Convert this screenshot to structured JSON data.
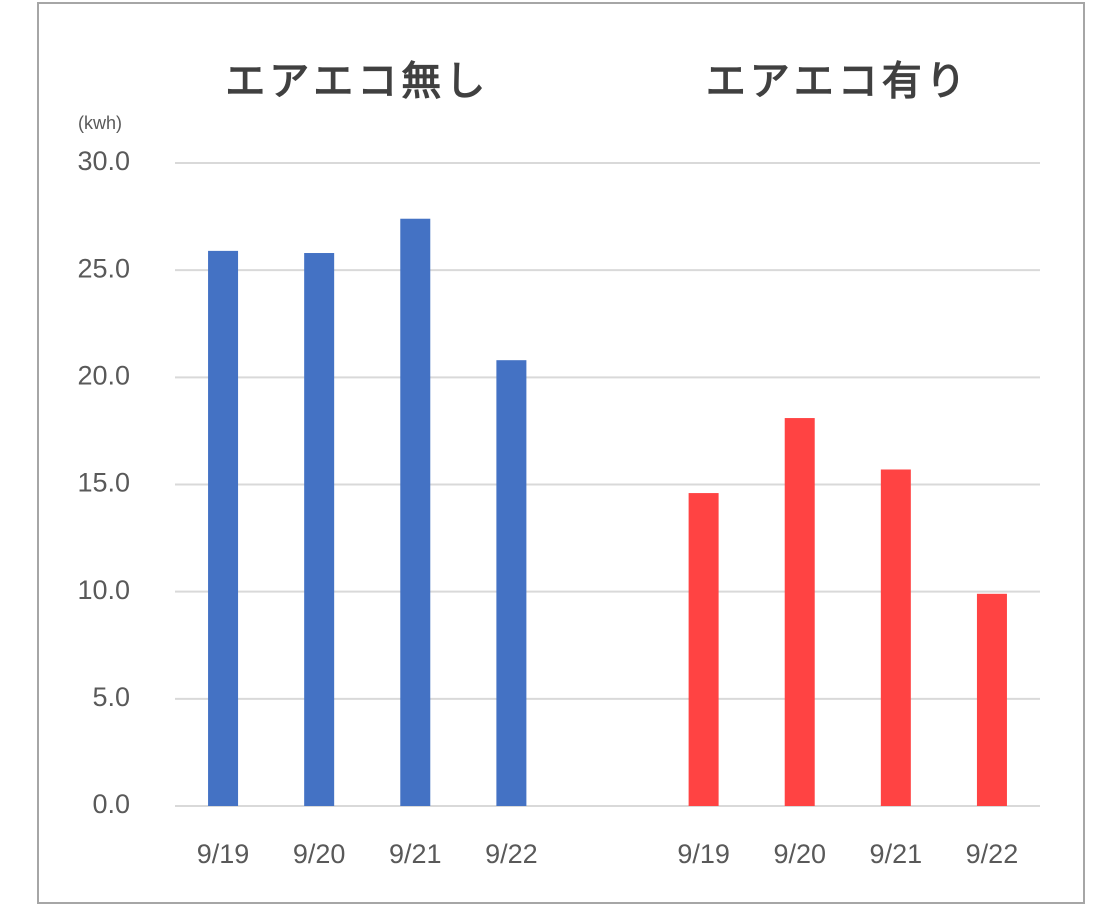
{
  "chart_data": {
    "type": "bar",
    "ylabel": "(kwh)",
    "categories": [
      "9/19",
      "9/20",
      "9/21",
      "9/22",
      null,
      "9/19",
      "9/20",
      "9/21",
      "9/22"
    ],
    "series": [
      {
        "name": "エアエコ無し",
        "color": "#4472c4",
        "values": [
          25.9,
          25.8,
          27.4,
          20.8,
          null,
          null,
          null,
          null,
          null
        ]
      },
      {
        "name": "エアエコ有り",
        "color": "#ff4343",
        "values": [
          null,
          null,
          null,
          null,
          null,
          14.6,
          18.1,
          15.7,
          9.9
        ]
      }
    ],
    "ylim": [
      0,
      30
    ],
    "yticks": [
      {
        "value": 0,
        "label": "0.0"
      },
      {
        "value": 5,
        "label": "5.0"
      },
      {
        "value": 10,
        "label": "10.0"
      },
      {
        "value": 15,
        "label": "15.0"
      },
      {
        "value": 20,
        "label": "20.0"
      },
      {
        "value": 25,
        "label": "25.0"
      },
      {
        "value": 30,
        "label": "30.0"
      }
    ],
    "grid": true
  }
}
